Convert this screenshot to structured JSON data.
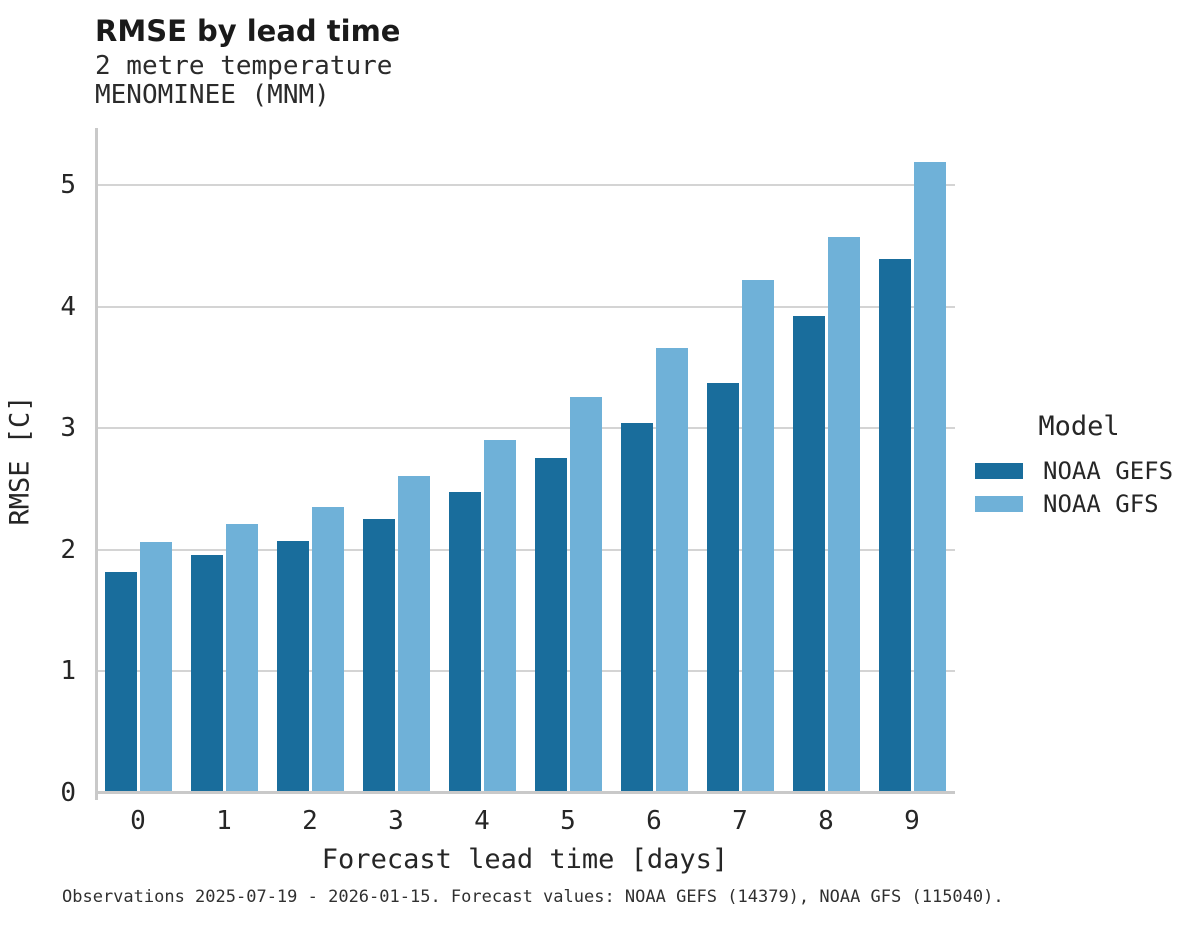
{
  "chart_data": {
    "type": "bar",
    "title": "RMSE by lead time",
    "subtitle": "2 metre temperature",
    "station": "MENOMINEE (MNM)",
    "categories": [
      "0",
      "1",
      "2",
      "3",
      "4",
      "5",
      "6",
      "7",
      "8",
      "9"
    ],
    "series": [
      {
        "name": "NOAA GEFS",
        "color": "#196d9c",
        "values": [
          1.8,
          1.94,
          2.06,
          2.24,
          2.46,
          2.74,
          3.03,
          3.36,
          3.91,
          4.38
        ]
      },
      {
        "name": "NOAA GFS",
        "color": "#6fb1d8",
        "values": [
          2.05,
          2.2,
          2.34,
          2.59,
          2.89,
          3.24,
          3.64,
          4.2,
          4.56,
          5.17
        ]
      }
    ],
    "xlabel": "Forecast lead time [days]",
    "ylabel": "RMSE [C]",
    "ylim": [
      0,
      5.47
    ],
    "yticks": [
      0,
      1,
      2,
      3,
      4,
      5
    ],
    "grid": true,
    "legend_title": "Model",
    "legend_position": "right",
    "caption": "Observations 2025-07-19 - 2026-01-15. Forecast values: NOAA GEFS (14379), NOAA GFS (115040)."
  },
  "colors": {
    "series_dark": "#196d9c",
    "series_light": "#6fb1d8",
    "gridline": "#d4d4d4",
    "spine": "#c9c9c9",
    "text": "#262626",
    "background": "#ffffff"
  }
}
